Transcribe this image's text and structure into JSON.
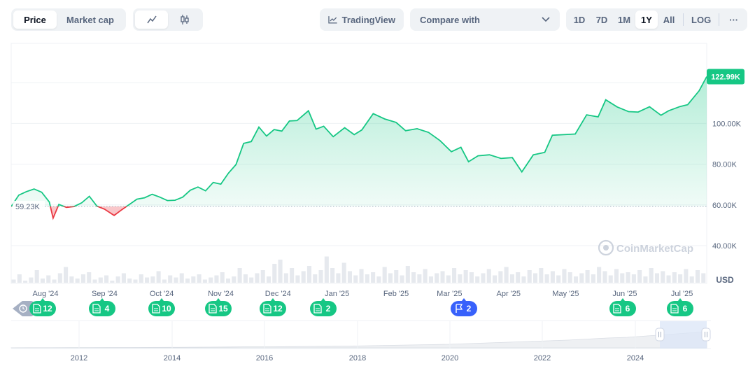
{
  "toolbar": {
    "price_tab": "Price",
    "market_cap_tab": "Market cap",
    "tradingview_label": "TradingView",
    "compare_label": "Compare with",
    "ranges": [
      "1D",
      "7D",
      "1M",
      "1Y",
      "All"
    ],
    "active_range": "1Y",
    "log_label": "LOG",
    "more_label": "···"
  },
  "chart_data": {
    "type": "area",
    "currency_label": "USD",
    "watermark": "CoinMarketCap",
    "baseline_value": 59230,
    "baseline_label": "59.23K",
    "current_value": 122990,
    "current_label": "122.99K",
    "ylim": [
      25000,
      140000
    ],
    "y_ticks": [
      {
        "value": 40000,
        "label": "40.00K"
      },
      {
        "value": 60000,
        "label": "60.00K"
      },
      {
        "value": 80000,
        "label": "80.00K"
      },
      {
        "value": 100000,
        "label": "100.00K"
      }
    ],
    "x_ticks": [
      "Aug '24",
      "Sep '24",
      "Oct '24",
      "Nov '24",
      "Dec '24",
      "Jan '25",
      "Feb '25",
      "Mar '25",
      "Apr '25",
      "May '25",
      "Jun '25",
      "Jul '25"
    ],
    "colors": {
      "up": "#16c784",
      "down": "#ea3943",
      "marker_news": "#16c784",
      "marker_flag": "#3861fb"
    },
    "series": [
      {
        "x": [
          "2024-07-14",
          "2024-07-18",
          "2024-07-22",
          "2024-07-26",
          "2024-07-30",
          "2024-08-03",
          "2024-08-05",
          "2024-08-08",
          "2024-08-12",
          "2024-08-16",
          "2024-08-20",
          "2024-08-24",
          "2024-08-28",
          "2024-09-01",
          "2024-09-06",
          "2024-09-10",
          "2024-09-14",
          "2024-09-18",
          "2024-09-22",
          "2024-09-26",
          "2024-09-30",
          "2024-10-04",
          "2024-10-08",
          "2024-10-12",
          "2024-10-16",
          "2024-10-20",
          "2024-10-24",
          "2024-10-28",
          "2024-11-01",
          "2024-11-05",
          "2024-11-09",
          "2024-11-13",
          "2024-11-17",
          "2024-11-21",
          "2024-11-25",
          "2024-11-29",
          "2024-12-03",
          "2024-12-07",
          "2024-12-11",
          "2024-12-17",
          "2024-12-21",
          "2024-12-25",
          "2024-12-30",
          "2025-01-05",
          "2025-01-10",
          "2025-01-14",
          "2025-01-20",
          "2025-01-26",
          "2025-02-01",
          "2025-02-06",
          "2025-02-12",
          "2025-02-18",
          "2025-02-24",
          "2025-03-02",
          "2025-03-07",
          "2025-03-11",
          "2025-03-16",
          "2025-03-22",
          "2025-03-28",
          "2025-04-03",
          "2025-04-08",
          "2025-04-14",
          "2025-04-20",
          "2025-04-24",
          "2025-04-30",
          "2025-05-06",
          "2025-05-12",
          "2025-05-18",
          "2025-05-22",
          "2025-05-28",
          "2025-06-03",
          "2025-06-08",
          "2025-06-14",
          "2025-06-20",
          "2025-06-24",
          "2025-06-30",
          "2025-07-04",
          "2025-07-10",
          "2025-07-14"
        ],
        "values": [
          59200,
          64800,
          66500,
          67800,
          66200,
          61400,
          53500,
          60200,
          58800,
          59200,
          61000,
          64200,
          59400,
          57900,
          54800,
          57600,
          60200,
          62800,
          63500,
          65200,
          63800,
          62100,
          62300,
          63800,
          67200,
          68800,
          66900,
          71000,
          70200,
          75600,
          79800,
          90200,
          91100,
          98200,
          93800,
          97000,
          96200,
          101200,
          101400,
          106200,
          97200,
          98600,
          93500,
          97900,
          94500,
          96800,
          104800,
          102200,
          100500,
          96400,
          97400,
          95600,
          91600,
          86100,
          88300,
          81200,
          84100,
          84600,
          82800,
          83200,
          76200,
          84600,
          85800,
          94200,
          94500,
          94800,
          104200,
          103200,
          111600,
          108100,
          105800,
          105600,
          108200,
          104000,
          106200,
          108300,
          109200,
          116000,
          122990
        ]
      }
    ]
  },
  "volume_bars": [
    3,
    8,
    2,
    5,
    12,
    4,
    7,
    3,
    9,
    15,
    6,
    4,
    8,
    10,
    3,
    5,
    7,
    2,
    6,
    9,
    4,
    3,
    8,
    5,
    6,
    11,
    3,
    7,
    5,
    9,
    4,
    6,
    8,
    3,
    5,
    7,
    10,
    4,
    6,
    14,
    8,
    5,
    9,
    12,
    6,
    18,
    22,
    9,
    14,
    7,
    11,
    16,
    8,
    12,
    25,
    14,
    9,
    19,
    11,
    7,
    13,
    8,
    10,
    6,
    15,
    9,
    12,
    7,
    16,
    10,
    8,
    13,
    6,
    9,
    11,
    7,
    14,
    8,
    12,
    10,
    6,
    9,
    13,
    7,
    11,
    15,
    8,
    10,
    6,
    12,
    9,
    14,
    8,
    11,
    7,
    13,
    10,
    6,
    9,
    12,
    8,
    15,
    11,
    7,
    13,
    9,
    10,
    8,
    12,
    6,
    14,
    9,
    11,
    7,
    10,
    8,
    13,
    6,
    12,
    9
  ],
  "news_markers": [
    {
      "type": "news",
      "count": "12"
    },
    {
      "type": "news",
      "count": "4"
    },
    {
      "type": "news",
      "count": "10"
    },
    {
      "type": "news",
      "count": "15"
    },
    {
      "type": "news",
      "count": "12"
    },
    {
      "type": "news",
      "count": "2"
    },
    {
      "type": "flag",
      "count": "2"
    },
    {
      "type": "news",
      "count": "6"
    },
    {
      "type": "news",
      "count": "6"
    }
  ],
  "navigator": {
    "x_ticks": [
      "2012",
      "2014",
      "2016",
      "2018",
      "2020",
      "2022",
      "2024"
    ],
    "history": [
      0.3,
      0.4,
      0.5,
      0.6,
      0.8,
      1,
      1,
      1.2,
      1.5,
      1.8,
      2,
      2.5,
      3,
      3,
      3.5,
      4,
      4.5,
      5,
      6,
      7,
      8,
      9,
      10,
      12,
      14,
      16,
      18,
      20,
      22,
      25,
      28,
      30,
      34,
      38,
      42,
      46
    ]
  }
}
